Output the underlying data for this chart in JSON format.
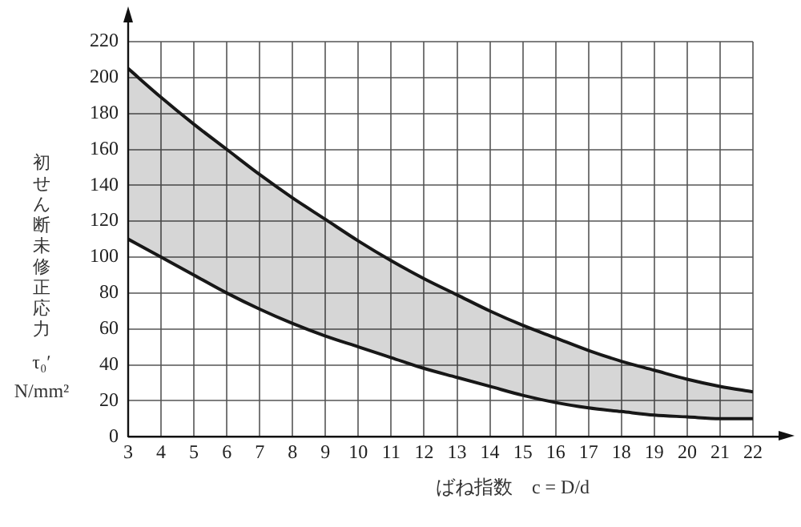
{
  "chart_data": {
    "type": "line",
    "xlabel": "ばね指数　c = D/d",
    "ylabel": "初せん断未修正応力\nτ₀′\nN/mm²",
    "x": [
      3,
      4,
      5,
      6,
      7,
      8,
      9,
      10,
      11,
      12,
      13,
      14,
      15,
      16,
      17,
      18,
      19,
      20,
      21,
      22
    ],
    "series": [
      {
        "color": "#1a1a1a",
        "values": [
          205,
          189,
          174,
          160,
          146,
          133,
          121,
          109,
          98,
          88,
          79,
          70,
          62,
          55,
          48,
          42,
          37,
          32,
          28,
          25
        ],
        "lower": [
          110,
          100,
          90,
          80,
          71,
          63,
          56,
          50,
          44,
          38,
          33,
          28,
          23,
          19,
          16,
          14,
          12,
          11,
          10,
          10
        ],
        "upper": [
          205,
          189,
          174,
          160,
          146,
          133,
          121,
          109,
          98,
          88,
          79,
          70,
          62,
          55,
          48,
          42,
          37,
          32,
          28,
          25
        ]
      },
      {
        "color": "#1a1a1a",
        "values": [
          110,
          100,
          90,
          80,
          71,
          63,
          56,
          50,
          44,
          38,
          33,
          28,
          23,
          19,
          16,
          14,
          12,
          11,
          10,
          10
        ]
      }
    ],
    "xlim": [
      3,
      22
    ],
    "xticks": [
      3,
      4,
      5,
      6,
      7,
      8,
      9,
      10,
      11,
      12,
      13,
      14,
      15,
      16,
      17,
      18,
      19,
      20,
      21,
      22
    ],
    "ylim": [
      0,
      220
    ],
    "yticks": [
      0,
      20,
      40,
      60,
      80,
      100,
      120,
      140,
      160,
      180,
      200,
      220
    ],
    "grid": true,
    "legend": false,
    "marker": "none",
    "line_style": "solid"
  }
}
